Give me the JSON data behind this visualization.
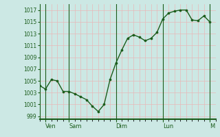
{
  "background_color": "#cce8e4",
  "line_color": "#1a5c1a",
  "marker_color": "#1a5c1a",
  "axis_color": "#1a5c1a",
  "tick_label_color": "#1a5c1a",
  "grid_color": "#e8b8b8",
  "ylim": [
    998.5,
    1018.0
  ],
  "yticks": [
    999,
    1001,
    1003,
    1005,
    1007,
    1009,
    1011,
    1013,
    1015,
    1017
  ],
  "day_labels": [
    "Ven",
    "Sam",
    "Dim",
    "Lun",
    "M"
  ],
  "vline_positions": [
    6,
    30,
    78,
    126,
    174
  ],
  "x_data": [
    0,
    6,
    12,
    18,
    24,
    30,
    36,
    42,
    48,
    54,
    60,
    66,
    72,
    78,
    84,
    90,
    96,
    102,
    108,
    114,
    120,
    126,
    132,
    138,
    144,
    150,
    156,
    162,
    168,
    174
  ],
  "y_data": [
    1004.2,
    1003.6,
    1005.2,
    1005.0,
    1003.2,
    1003.2,
    1002.8,
    1002.3,
    1001.8,
    1000.7,
    999.8,
    1001.0,
    1005.2,
    1008.0,
    1010.2,
    1012.2,
    1012.8,
    1012.4,
    1011.8,
    1012.2,
    1013.2,
    1015.5,
    1016.5,
    1016.8,
    1017.0,
    1017.0,
    1015.3,
    1015.2,
    1016.0,
    1015.0
  ],
  "xlim": [
    0,
    180
  ]
}
